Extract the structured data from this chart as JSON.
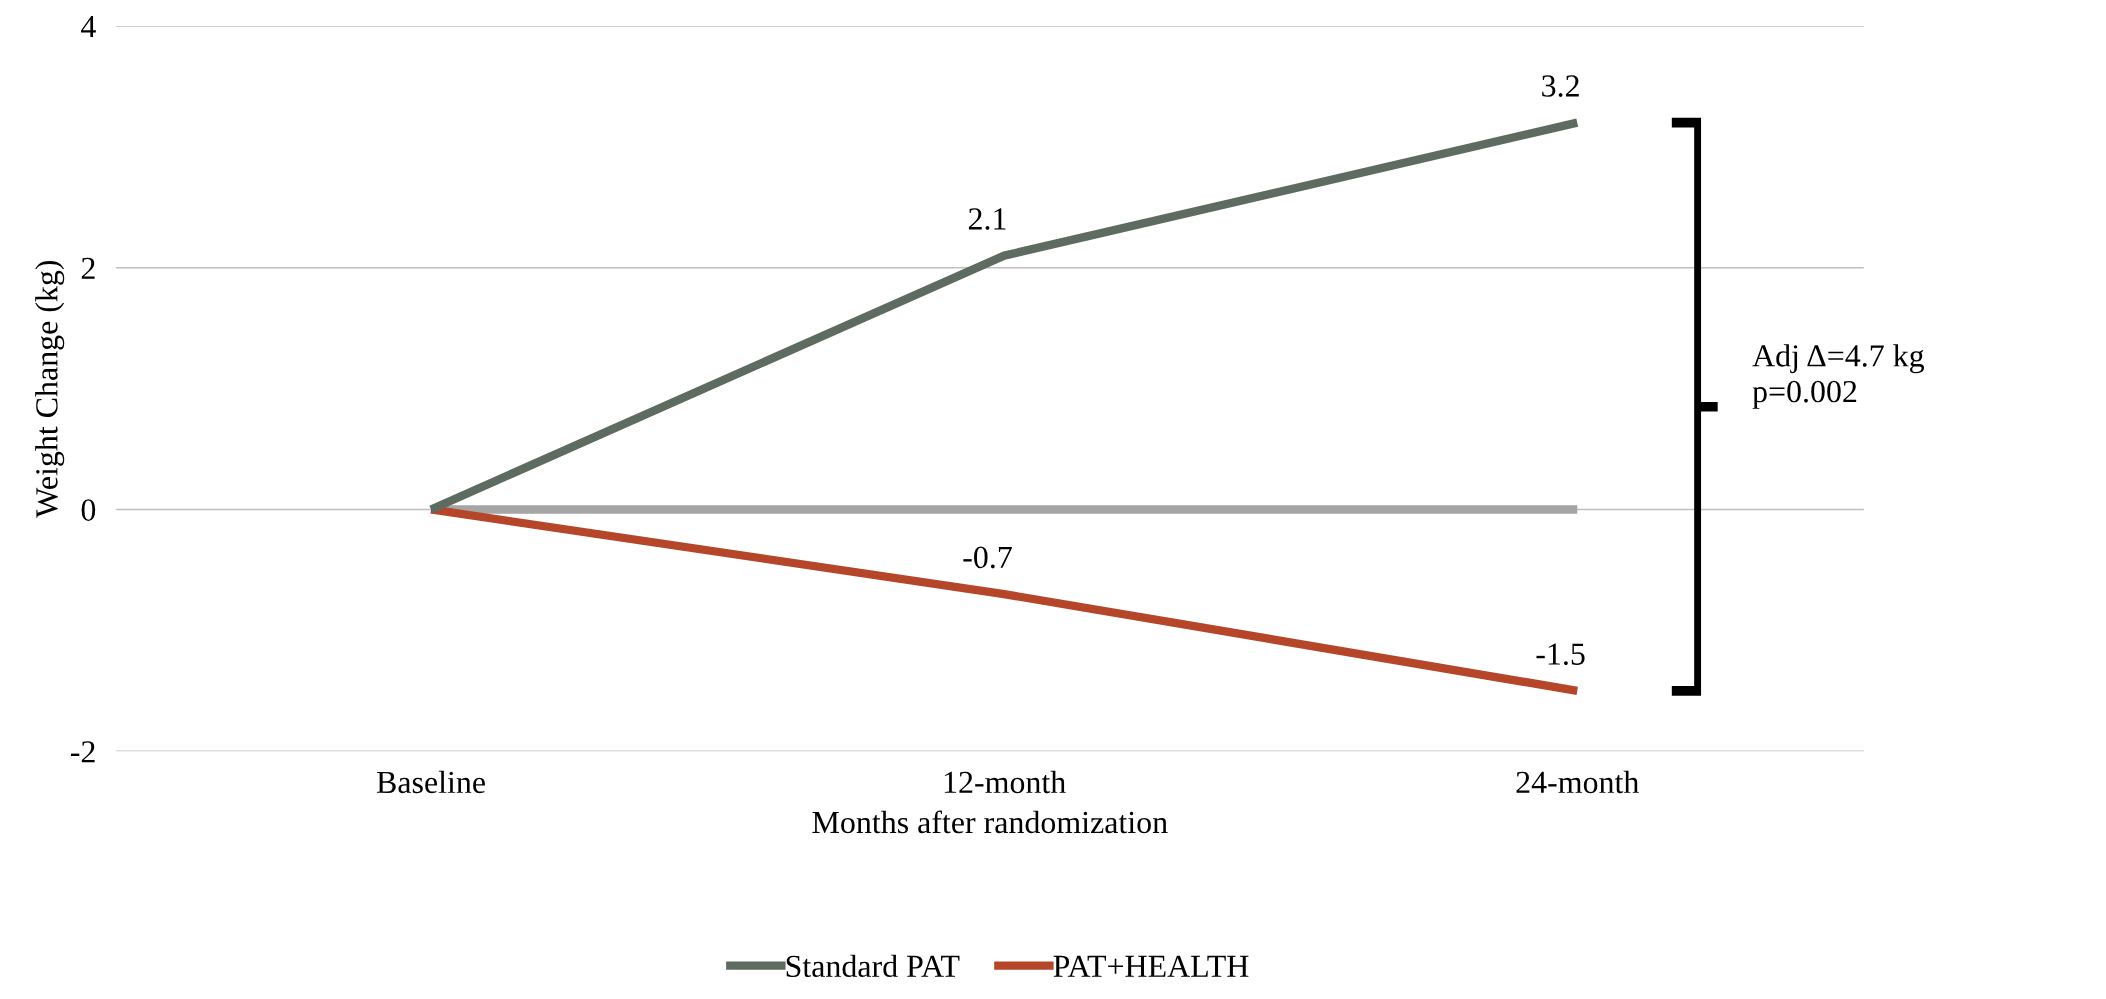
{
  "chart_data": {
    "type": "line",
    "xlabel": "Months after randomization",
    "ylabel": "Weight Change (kg)",
    "categories": [
      "Baseline",
      "12-month",
      "24-month"
    ],
    "series": [
      {
        "name": "Standard PAT",
        "color": "#5e6b60",
        "values": [
          0,
          2.1,
          3.2
        ],
        "value_labels": [
          null,
          "2.1",
          "3.2"
        ]
      },
      {
        "name": "PAT+HEALTH",
        "color": "#b5462a",
        "values": [
          0,
          -0.7,
          -1.5
        ],
        "value_labels": [
          null,
          "-0.7",
          "-1.5"
        ]
      },
      {
        "color": "#a5a5a5",
        "values": [
          0,
          0,
          0
        ]
      }
    ],
    "ylim": [
      -2,
      4
    ],
    "yticks": [
      -2,
      0,
      2,
      4
    ],
    "grid": "y",
    "legend": "bottom",
    "marker": "none",
    "line_style": "solid",
    "annotations": [
      "Adj Δ=4.7 kg\np=0.002"
    ]
  }
}
